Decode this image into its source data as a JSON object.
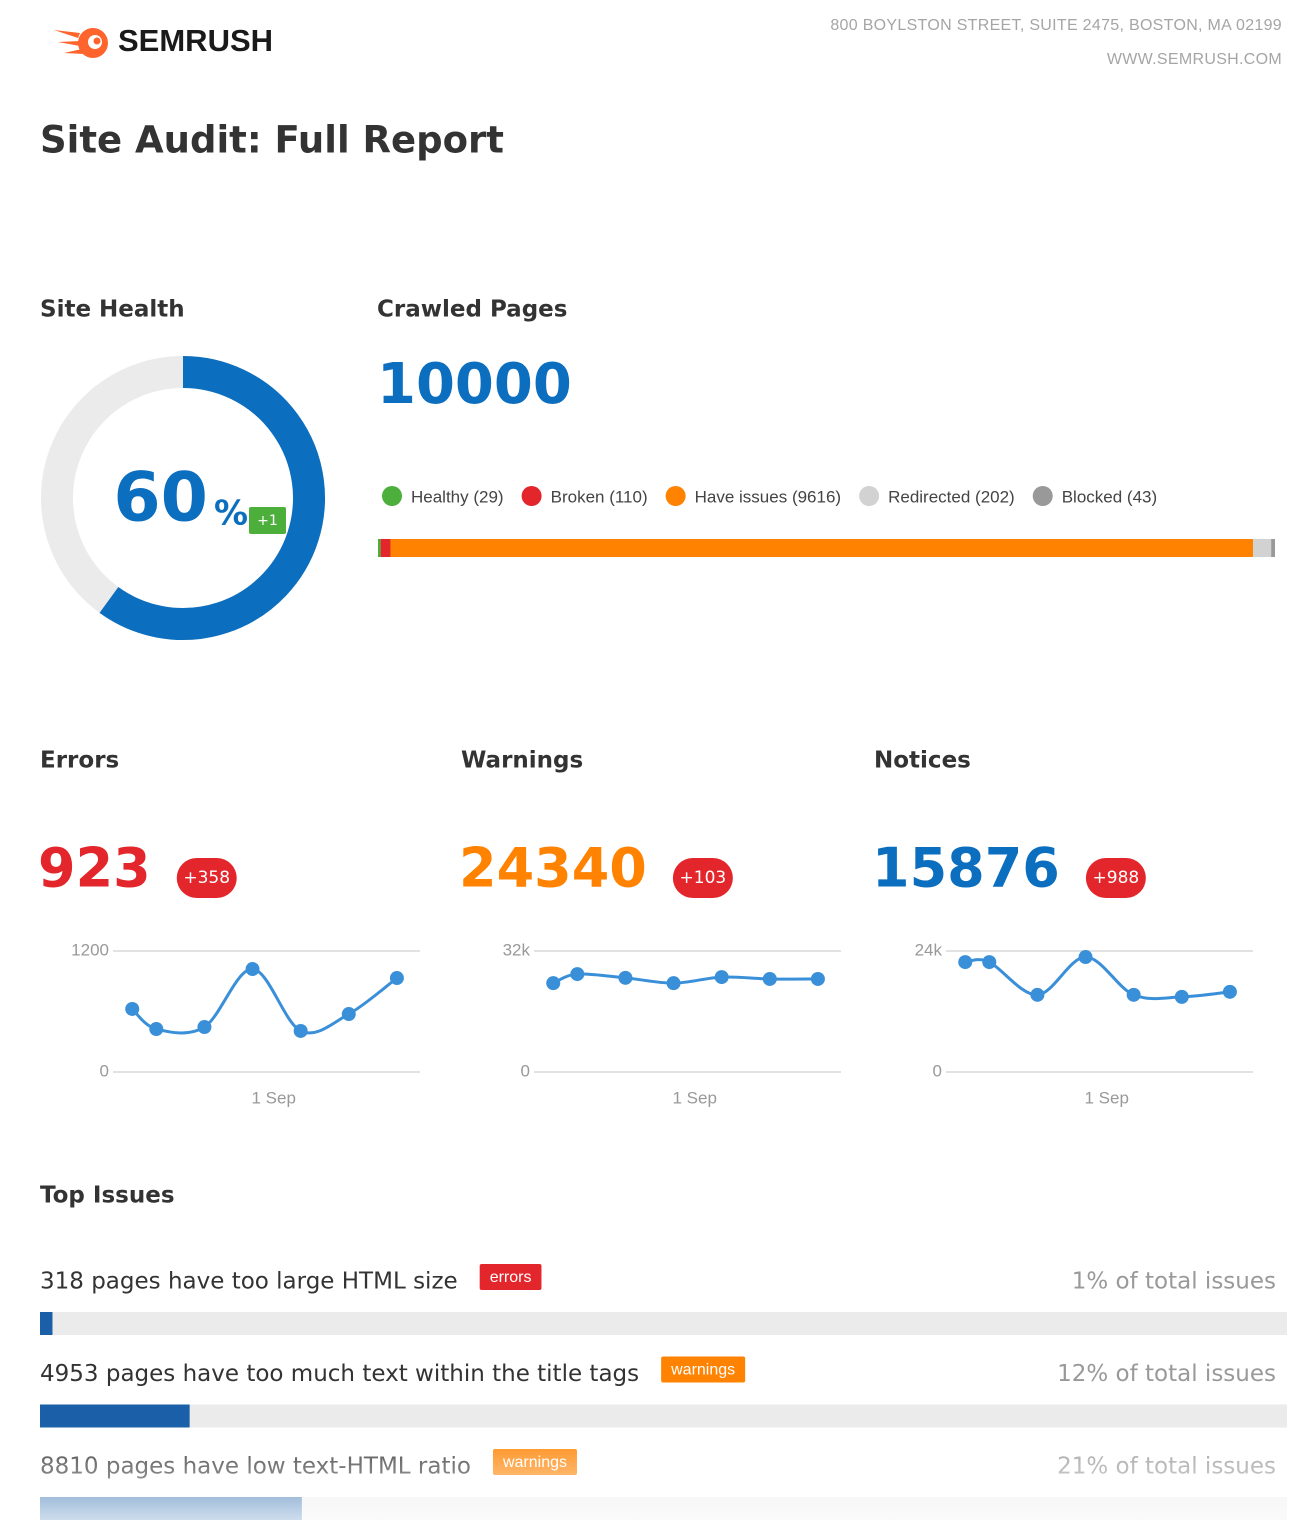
{
  "header": {
    "logo": "SEMRUSH",
    "address": "800 BOYLSTON STREET, SUITE 2475, BOSTON, MA 02199",
    "website": "WWW.SEMRUSH.COM"
  },
  "title": "Site Audit: Full Report",
  "site_health": {
    "title": "Site Health",
    "value": 60,
    "unit": "%",
    "delta": "+1",
    "lim": [
      0,
      100
    ],
    "color": "#0b6ebf",
    "track_color": "#ebebeb",
    "delta_color": "#4caf3c"
  },
  "crawled_pages": {
    "title": "Crawled Pages",
    "value": 10000,
    "color": "#0b6ebf",
    "segments": [
      {
        "label": "Healthy (29)",
        "value": 29,
        "color": "#4caf3c"
      },
      {
        "label": "Broken (110)",
        "value": 110,
        "color": "#e3262c"
      },
      {
        "label": "Have issues (9616)",
        "value": 9616,
        "color": "#ff8200"
      },
      {
        "label": "Redirected (202)",
        "value": 202,
        "color": "#d2d2d2"
      },
      {
        "label": "Blocked (43)",
        "value": 43,
        "color": "#999999"
      }
    ]
  },
  "metrics": [
    {
      "title": "Errors",
      "value": 923,
      "delta": "+358",
      "color": "#e3262c",
      "delta_color": "#e3262c",
      "chart": {
        "type": "line",
        "x": [
          0,
          0.5,
          1.5,
          2.5,
          3.5,
          4.5,
          5.5
        ],
        "values": [
          625,
          426,
          446,
          1021,
          407,
          575,
          932
        ],
        "xlim": [
          -0.4,
          5.98
        ],
        "xticks": [
          {
            "value": 2.94,
            "label": "1 Sep"
          }
        ],
        "ylim": [
          0,
          1200
        ],
        "yticks": [
          0,
          1200
        ],
        "color": "#3a8fd9",
        "grid": true
      }
    },
    {
      "title": "Warnings",
      "value": 24340,
      "delta": "+103",
      "color": "#ff8200",
      "delta_color": "#e3262c",
      "chart": {
        "type": "line",
        "x": [
          0,
          0.5,
          1.5,
          2.5,
          3.5,
          4.5,
          5.5
        ],
        "values": [
          23500,
          25900,
          24900,
          23500,
          25100,
          24600,
          24600
        ],
        "xlim": [
          -0.4,
          5.98
        ],
        "xticks": [
          {
            "value": 2.94,
            "label": "1 Sep"
          }
        ],
        "ylim": [
          0,
          32000
        ],
        "yticks": [
          0,
          {
            "value": 32000,
            "label": "32k"
          }
        ],
        "color": "#3a8fd9",
        "grid": true
      }
    },
    {
      "title": "Notices",
      "value": 15876,
      "delta": "+988",
      "color": "#0b6ebf",
      "delta_color": "#e3262c",
      "chart": {
        "type": "line",
        "x": [
          0,
          0.5,
          1.5,
          2.5,
          3.5,
          4.5,
          5.5
        ],
        "values": [
          21800,
          21800,
          15300,
          22800,
          15300,
          14900,
          15900
        ],
        "xlim": [
          -0.4,
          5.98
        ],
        "xticks": [
          {
            "value": 2.94,
            "label": "1 Sep"
          }
        ],
        "ylim": [
          0,
          24000
        ],
        "yticks": [
          0,
          {
            "value": 24000,
            "label": "24k"
          }
        ],
        "color": "#3a8fd9",
        "grid": true
      }
    }
  ],
  "top_issues": {
    "title": "Top Issues",
    "xlim": [
      0,
      100
    ],
    "bar_color": "#1a5fa8",
    "track_color": "#ebebeb",
    "items": [
      {
        "text": "318 pages have too large HTML size",
        "tag": "errors",
        "tag_color": "#e3262c",
        "share": 1,
        "share_label": "1% of total issues"
      },
      {
        "text": "4953 pages have too much text within the title tags",
        "tag": "warnings",
        "tag_color": "#ff8200",
        "share": 12,
        "share_label": "12% of total issues"
      },
      {
        "text": "8810 pages have low text-HTML ratio",
        "tag": "warnings",
        "tag_color": "#ff8200",
        "share": 21,
        "share_label": "21% of total issues"
      }
    ]
  }
}
